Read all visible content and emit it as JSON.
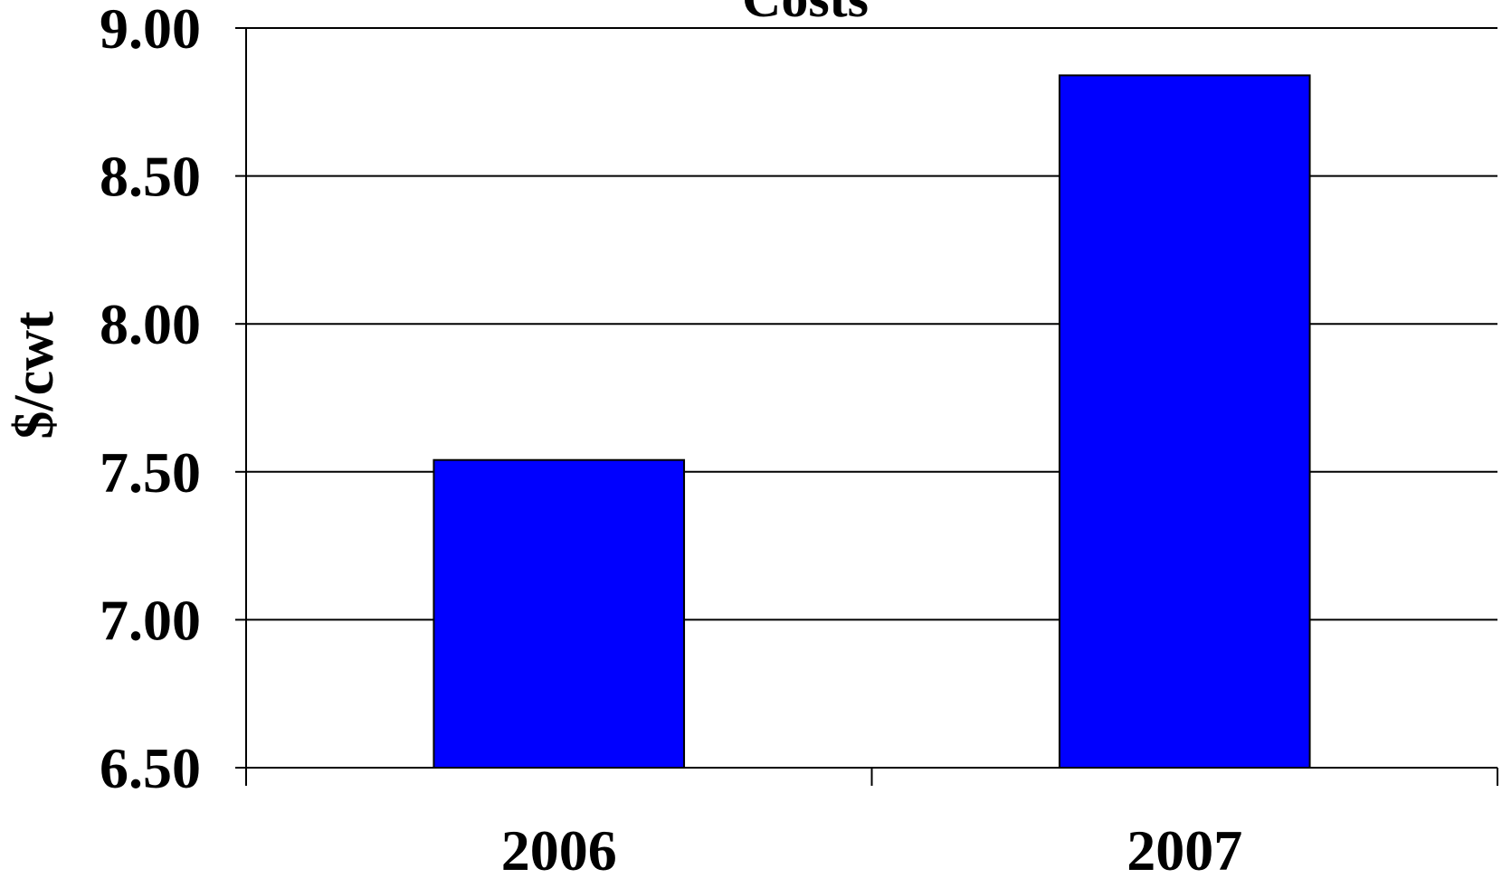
{
  "chart_data": {
    "type": "bar",
    "title": "Costs",
    "xlabel": "",
    "ylabel": "$/cwt",
    "categories": [
      "2006",
      "2007"
    ],
    "values": [
      7.54,
      8.84
    ],
    "ylim": [
      6.5,
      9.0
    ],
    "yticks": [
      "6.50",
      "7.00",
      "7.50",
      "8.00",
      "8.50",
      "9.00"
    ],
    "grid": true,
    "legend": "none",
    "colors": {
      "bar": "#0000ff",
      "gridline": "#000000",
      "text": "#000000",
      "background": "#ffffff"
    }
  }
}
